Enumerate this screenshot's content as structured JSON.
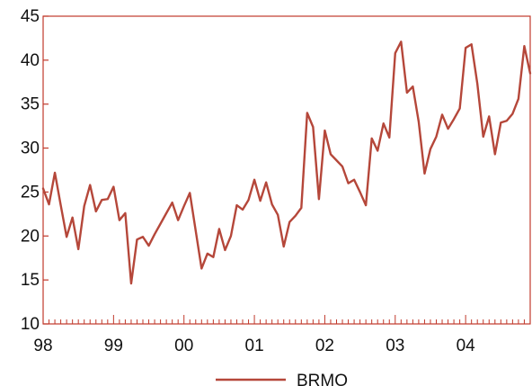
{
  "chart_data": {
    "type": "line",
    "title": "",
    "xlabel": "",
    "ylabel": "",
    "ylim": [
      10,
      45
    ],
    "y_ticks": [
      10,
      15,
      20,
      25,
      30,
      35,
      40,
      45
    ],
    "x_range": [
      1998.0,
      2004.917
    ],
    "x_ticks": [
      {
        "value": 1998,
        "label": "98"
      },
      {
        "value": 1999,
        "label": "99"
      },
      {
        "value": 2000,
        "label": "00"
      },
      {
        "value": 2001,
        "label": "01"
      },
      {
        "value": 2002,
        "label": "02"
      },
      {
        "value": 2003,
        "label": "03"
      },
      {
        "value": 2004,
        "label": "04"
      }
    ],
    "grid": false,
    "legend_position": "bottom-center",
    "line_color": "#b5473a",
    "axis_color": "#c0392b",
    "series": [
      {
        "name": "BRMO",
        "start": "1998-01",
        "frequency": "monthly",
        "values": [
          25.4,
          23.6,
          27.2,
          23.5,
          19.9,
          22.1,
          18.5,
          23.4,
          25.8,
          22.8,
          24.1,
          24.2,
          25.6,
          21.8,
          22.6,
          14.6,
          19.6,
          19.9,
          18.9,
          20.2,
          21.4,
          22.6,
          23.8,
          21.8,
          23.4,
          24.9,
          20.6,
          16.3,
          18.0,
          17.6,
          20.8,
          18.4,
          20.0,
          23.5,
          23.0,
          24.1,
          26.4,
          24.0,
          26.1,
          23.6,
          22.4,
          18.8,
          21.6,
          22.3,
          23.2,
          34.0,
          32.4,
          24.2,
          32.0,
          29.3,
          28.6,
          27.9,
          26.0,
          26.4,
          25.0,
          23.5,
          31.1,
          29.7,
          32.8,
          31.2,
          40.8,
          42.1,
          36.3,
          37.0,
          33.0,
          27.1,
          29.9,
          31.3,
          33.8,
          32.2,
          33.3,
          34.5,
          41.4,
          41.8,
          37.3,
          31.3,
          33.6,
          29.3,
          32.9,
          33.1,
          33.9,
          35.6,
          41.6,
          38.5
        ]
      }
    ]
  }
}
